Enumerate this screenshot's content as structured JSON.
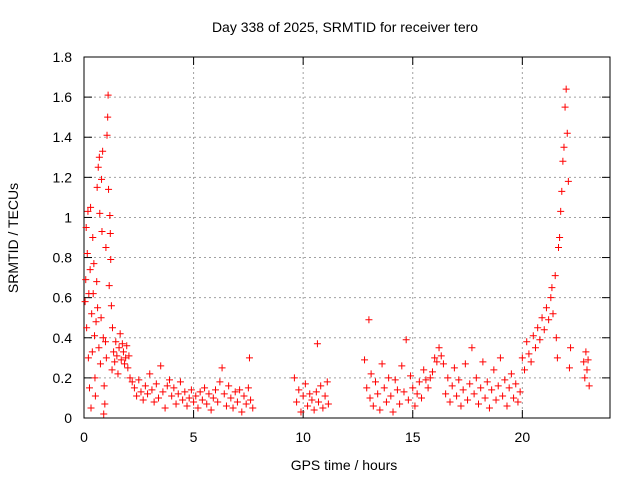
{
  "chart_data": {
    "type": "scatter",
    "title": "Day 338 of 2025, SRMTID for receiver tero",
    "xlabel": "GPS time / hours",
    "ylabel": "SRMTID / TECUs",
    "xlim": [
      0,
      24
    ],
    "ylim": [
      0,
      1.8
    ],
    "xticks": [
      0,
      5,
      10,
      15,
      20
    ],
    "yticks": [
      0,
      0.2,
      0.4,
      0.6,
      0.8,
      1,
      1.2,
      1.4,
      1.6,
      1.8
    ],
    "xtick_labels": [
      "0",
      "5",
      "10",
      "15",
      "20"
    ],
    "ytick_labels": [
      "0",
      "0.2",
      "0.4",
      "0.6",
      "0.8",
      "1",
      "1.2",
      "1.4",
      "1.6",
      "1.8"
    ],
    "grid": true,
    "marker": "+",
    "series": [
      {
        "name": "SRMTID",
        "color": "#ff0000",
        "points": [
          [
            0.05,
            0.58
          ],
          [
            0.08,
            0.69
          ],
          [
            0.1,
            0.95
          ],
          [
            0.12,
            0.45
          ],
          [
            0.15,
            0.82
          ],
          [
            0.18,
            1.03
          ],
          [
            0.2,
            0.3
          ],
          [
            0.22,
            0.62
          ],
          [
            0.25,
            0.15
          ],
          [
            0.28,
            0.74
          ],
          [
            0.3,
            1.05
          ],
          [
            0.32,
            0.05
          ],
          [
            0.35,
            0.52
          ],
          [
            0.38,
            0.33
          ],
          [
            0.4,
            0.9
          ],
          [
            0.42,
            0.62
          ],
          [
            0.45,
            0.77
          ],
          [
            0.48,
            0.41
          ],
          [
            0.5,
            0.2
          ],
          [
            0.52,
            0.11
          ],
          [
            0.55,
            0.48
          ],
          [
            0.58,
            0.68
          ],
          [
            0.6,
            1.15
          ],
          [
            0.62,
            0.55
          ],
          [
            0.65,
            1.25
          ],
          [
            0.68,
            0.35
          ],
          [
            0.7,
            1.3
          ],
          [
            0.72,
            1.02
          ],
          [
            0.75,
            0.27
          ],
          [
            0.78,
            0.5
          ],
          [
            0.8,
            1.19
          ],
          [
            0.82,
            0.93
          ],
          [
            0.85,
            1.33
          ],
          [
            0.88,
            0.4
          ],
          [
            0.9,
            0.02
          ],
          [
            0.92,
            0.16
          ],
          [
            0.95,
            0.07
          ],
          [
            0.98,
            0.38
          ],
          [
            1.0,
            0.85
          ],
          [
            1.02,
            0.3
          ],
          [
            1.05,
            1.41
          ],
          [
            1.08,
            1.5
          ],
          [
            1.1,
            1.61
          ],
          [
            1.12,
            1.14
          ],
          [
            1.15,
            0.66
          ],
          [
            1.18,
            1.01
          ],
          [
            1.2,
            0.92
          ],
          [
            1.22,
            0.79
          ],
          [
            1.25,
            0.56
          ],
          [
            1.28,
            0.24
          ],
          [
            1.3,
            0.45
          ],
          [
            1.35,
            0.33
          ],
          [
            1.4,
            0.28
          ],
          [
            1.45,
            0.38
          ],
          [
            1.5,
            0.31
          ],
          [
            1.55,
            0.22
          ],
          [
            1.6,
            0.35
          ],
          [
            1.65,
            0.42
          ],
          [
            1.7,
            0.29
          ],
          [
            1.75,
            0.37
          ],
          [
            1.8,
            0.33
          ],
          [
            1.85,
            0.27
          ],
          [
            1.9,
            0.3
          ],
          [
            1.95,
            0.36
          ],
          [
            2.0,
            0.25
          ],
          [
            2.05,
            0.31
          ],
          [
            2.1,
            0.2
          ],
          [
            2.2,
            0.18
          ],
          [
            2.3,
            0.15
          ],
          [
            2.4,
            0.11
          ],
          [
            2.5,
            0.19
          ],
          [
            2.6,
            0.13
          ],
          [
            2.7,
            0.09
          ],
          [
            2.8,
            0.16
          ],
          [
            2.9,
            0.12
          ],
          [
            3.0,
            0.22
          ],
          [
            3.1,
            0.14
          ],
          [
            3.2,
            0.08
          ],
          [
            3.3,
            0.17
          ],
          [
            3.4,
            0.1
          ],
          [
            3.5,
            0.26
          ],
          [
            3.6,
            0.13
          ],
          [
            3.7,
            0.05
          ],
          [
            3.8,
            0.16
          ],
          [
            3.9,
            0.19
          ],
          [
            4.0,
            0.11
          ],
          [
            4.1,
            0.15
          ],
          [
            4.2,
            0.07
          ],
          [
            4.3,
            0.12
          ],
          [
            4.4,
            0.18
          ],
          [
            4.5,
            0.09
          ],
          [
            4.6,
            0.13
          ],
          [
            4.7,
            0.06
          ],
          [
            4.8,
            0.1
          ],
          [
            4.9,
            0.14
          ],
          [
            5.0,
            0.08
          ],
          [
            5.1,
            0.11
          ],
          [
            5.2,
            0.05
          ],
          [
            5.3,
            0.13
          ],
          [
            5.4,
            0.09
          ],
          [
            5.5,
            0.15
          ],
          [
            5.6,
            0.07
          ],
          [
            5.7,
            0.12
          ],
          [
            5.8,
            0.04
          ],
          [
            5.9,
            0.1
          ],
          [
            6.0,
            0.14
          ],
          [
            6.1,
            0.08
          ],
          [
            6.2,
            0.18
          ],
          [
            6.3,
            0.25
          ],
          [
            6.4,
            0.12
          ],
          [
            6.5,
            0.06
          ],
          [
            6.6,
            0.16
          ],
          [
            6.7,
            0.1
          ],
          [
            6.8,
            0.05
          ],
          [
            6.9,
            0.13
          ],
          [
            7.0,
            0.08
          ],
          [
            7.1,
            0.14
          ],
          [
            7.2,
            0.03
          ],
          [
            7.3,
            0.11
          ],
          [
            7.4,
            0.07
          ],
          [
            7.5,
            0.15
          ],
          [
            7.55,
            0.3
          ],
          [
            7.6,
            0.09
          ],
          [
            7.7,
            0.05
          ],
          [
            9.6,
            0.2
          ],
          [
            9.7,
            0.08
          ],
          [
            9.8,
            0.14
          ],
          [
            9.9,
            0.03
          ],
          [
            10.0,
            0.11
          ],
          [
            10.1,
            0.17
          ],
          [
            10.2,
            0.06
          ],
          [
            10.3,
            0.12
          ],
          [
            10.4,
            0.09
          ],
          [
            10.5,
            0.04
          ],
          [
            10.6,
            0.13
          ],
          [
            10.65,
            0.37
          ],
          [
            10.7,
            0.08
          ],
          [
            10.8,
            0.16
          ],
          [
            10.9,
            0.05
          ],
          [
            11.0,
            0.11
          ],
          [
            11.1,
            0.18
          ],
          [
            11.15,
            0.07
          ],
          [
            12.8,
            0.29
          ],
          [
            12.9,
            0.15
          ],
          [
            13.0,
            0.49
          ],
          [
            13.05,
            0.1
          ],
          [
            13.1,
            0.22
          ],
          [
            13.2,
            0.06
          ],
          [
            13.3,
            0.18
          ],
          [
            13.4,
            0.12
          ],
          [
            13.5,
            0.04
          ],
          [
            13.6,
            0.27
          ],
          [
            13.7,
            0.15
          ],
          [
            13.8,
            0.08
          ],
          [
            13.9,
            0.2
          ],
          [
            14.0,
            0.11
          ],
          [
            14.1,
            0.03
          ],
          [
            14.2,
            0.19
          ],
          [
            14.3,
            0.14
          ],
          [
            14.4,
            0.07
          ],
          [
            14.5,
            0.26
          ],
          [
            14.6,
            0.13
          ],
          [
            14.7,
            0.39
          ],
          [
            14.8,
            0.09
          ],
          [
            14.9,
            0.21
          ],
          [
            15.0,
            0.15
          ],
          [
            15.1,
            0.06
          ],
          [
            15.2,
            0.12
          ],
          [
            15.3,
            0.18
          ],
          [
            15.4,
            0.1
          ],
          [
            15.5,
            0.24
          ],
          [
            15.6,
            0.19
          ],
          [
            15.7,
            0.15
          ],
          [
            15.8,
            0.2
          ],
          [
            15.9,
            0.23
          ],
          [
            16.0,
            0.3
          ],
          [
            16.1,
            0.28
          ],
          [
            16.2,
            0.35
          ],
          [
            16.3,
            0.31
          ],
          [
            16.4,
            0.27
          ],
          [
            16.5,
            0.12
          ],
          [
            16.6,
            0.2
          ],
          [
            16.7,
            0.08
          ],
          [
            16.8,
            0.16
          ],
          [
            16.9,
            0.25
          ],
          [
            17.0,
            0.11
          ],
          [
            17.1,
            0.19
          ],
          [
            17.2,
            0.06
          ],
          [
            17.3,
            0.14
          ],
          [
            17.4,
            0.27
          ],
          [
            17.5,
            0.09
          ],
          [
            17.6,
            0.17
          ],
          [
            17.7,
            0.35
          ],
          [
            17.8,
            0.12
          ],
          [
            17.9,
            0.2
          ],
          [
            18.0,
            0.07
          ],
          [
            18.1,
            0.15
          ],
          [
            18.2,
            0.28
          ],
          [
            18.3,
            0.1
          ],
          [
            18.4,
            0.18
          ],
          [
            18.5,
            0.05
          ],
          [
            18.6,
            0.14
          ],
          [
            18.7,
            0.24
          ],
          [
            18.8,
            0.09
          ],
          [
            18.9,
            0.16
          ],
          [
            19.0,
            0.3
          ],
          [
            19.1,
            0.11
          ],
          [
            19.2,
            0.19
          ],
          [
            19.3,
            0.06
          ],
          [
            19.4,
            0.15
          ],
          [
            19.5,
            0.22
          ],
          [
            19.6,
            0.1
          ],
          [
            19.7,
            0.17
          ],
          [
            19.8,
            0.08
          ],
          [
            19.9,
            0.13
          ],
          [
            20.0,
            0.3
          ],
          [
            20.1,
            0.24
          ],
          [
            20.2,
            0.38
          ],
          [
            20.3,
            0.32
          ],
          [
            20.4,
            0.28
          ],
          [
            20.5,
            0.41
          ],
          [
            20.6,
            0.35
          ],
          [
            20.7,
            0.45
          ],
          [
            20.8,
            0.39
          ],
          [
            20.9,
            0.5
          ],
          [
            21.0,
            0.44
          ],
          [
            21.1,
            0.55
          ],
          [
            21.2,
            0.49
          ],
          [
            21.3,
            0.6
          ],
          [
            21.35,
            0.65
          ],
          [
            21.4,
            0.52
          ],
          [
            21.5,
            0.71
          ],
          [
            21.55,
            0.4
          ],
          [
            21.6,
            0.3
          ],
          [
            21.65,
            0.85
          ],
          [
            21.7,
            0.9
          ],
          [
            21.75,
            1.03
          ],
          [
            21.8,
            1.13
          ],
          [
            21.85,
            1.28
          ],
          [
            21.9,
            1.35
          ],
          [
            21.95,
            1.55
          ],
          [
            22.0,
            1.64
          ],
          [
            22.05,
            1.42
          ],
          [
            22.1,
            1.18
          ],
          [
            22.15,
            0.25
          ],
          [
            22.2,
            0.35
          ],
          [
            22.8,
            0.28
          ],
          [
            22.85,
            0.2
          ],
          [
            22.9,
            0.33
          ],
          [
            22.95,
            0.24
          ],
          [
            23.0,
            0.29
          ],
          [
            23.05,
            0.16
          ]
        ]
      }
    ]
  }
}
